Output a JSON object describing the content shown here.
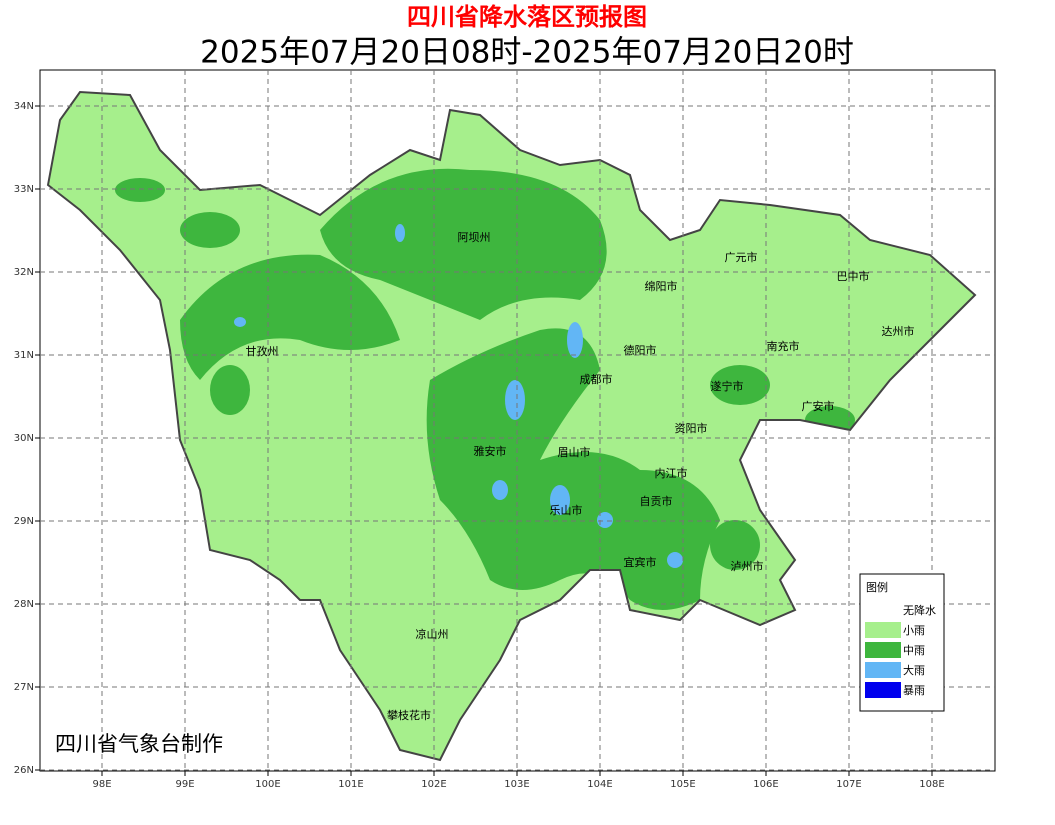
{
  "header": {
    "title": "四川省降水落区预报图",
    "subtitle": "2025年07月20日08时-2025年07月20日20时"
  },
  "map": {
    "lon_ticks": [
      "98E",
      "99E",
      "100E",
      "101E",
      "102E",
      "103E",
      "104E",
      "105E",
      "106E",
      "107E",
      "108E"
    ],
    "lat_ticks": [
      "34N",
      "33N",
      "32N",
      "31N",
      "30N",
      "29N",
      "28N",
      "27N",
      "26N"
    ],
    "regions": [
      "阿坝州",
      "甘孜州",
      "广元市",
      "巴中市",
      "绵阳市",
      "达州市",
      "德阳市",
      "南充市",
      "成都市",
      "遂宁市",
      "广安市",
      "资阳市",
      "雅安市",
      "眉山市",
      "内江市",
      "自贡市",
      "乐山市",
      "宜宾市",
      "泸州市",
      "凉山州",
      "攀枝花市"
    ]
  },
  "legend": {
    "title": "图例",
    "items": [
      "无降水",
      "小雨",
      "中雨",
      "大雨",
      "暴雨"
    ]
  },
  "footer": "四川省气象台制作"
}
